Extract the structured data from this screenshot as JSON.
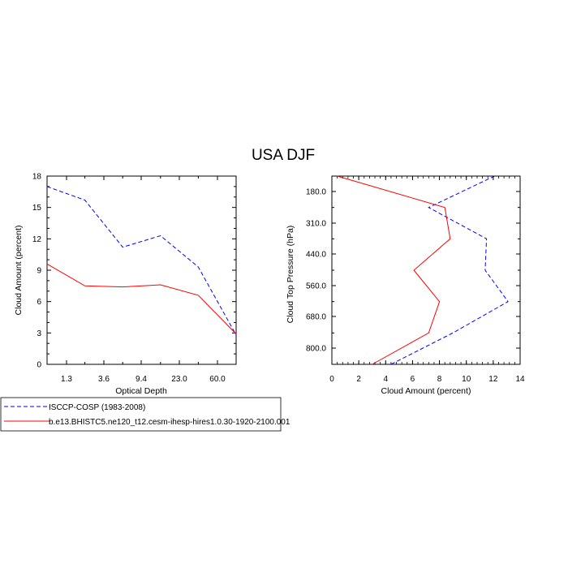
{
  "figure": {
    "title": "USA DJF"
  },
  "legend": {
    "entries": [
      {
        "label": "ISCCP-COSP (1983-2008)",
        "color": "#0000ff",
        "dash": "dashed"
      },
      {
        "label": "b.e13.BHISTC5.ne120_t12.cesm-ihesp-hires1.0.30-1920-2100.001",
        "color": "#ff0000",
        "dash": "solid"
      }
    ]
  },
  "chart_data": [
    {
      "type": "line",
      "xlabel": "Optical Depth",
      "ylabel": "Cloud Amount (percent)",
      "x_tick_labels": [
        "1.3",
        "3.6",
        "9.4",
        "23.0",
        "60.0"
      ],
      "ylim": [
        0,
        18
      ],
      "y_ticks": [
        0,
        3,
        6,
        9,
        12,
        15,
        18
      ],
      "series": [
        {
          "name": "ISCCP-COSP (1983-2008)",
          "values": [
            17.0,
            15.7,
            11.2,
            12.3,
            9.3,
            2.8
          ]
        },
        {
          "name": "b.e13.BHISTC5.ne120_t12.cesm-ihesp-hires1.0.30-1920-2100.001",
          "values": [
            9.6,
            7.5,
            7.4,
            7.6,
            6.6,
            2.9
          ]
        }
      ]
    },
    {
      "type": "line",
      "xlabel": "Cloud Amount (percent)",
      "ylabel": "Cloud Top Pressure (hPa)",
      "xlim": [
        0,
        14
      ],
      "x_ticks": [
        0,
        2,
        4,
        6,
        8,
        10,
        12,
        14
      ],
      "y_tick_labels": [
        "180.0",
        "310.0",
        "440.0",
        "560.0",
        "680.0",
        "800.0"
      ],
      "series": [
        {
          "name": "ISCCP-COSP (1983-2008)",
          "values": [
            12.1,
            7.2,
            11.5,
            11.4,
            13.1,
            9.0,
            4.4
          ]
        },
        {
          "name": "b.e13.BHISTC5.ne120_t12.cesm-ihesp-hires1.0.30-1920-2100.001",
          "values": [
            0.4,
            8.4,
            8.8,
            6.1,
            8.0,
            7.2,
            3.0
          ]
        }
      ]
    }
  ]
}
